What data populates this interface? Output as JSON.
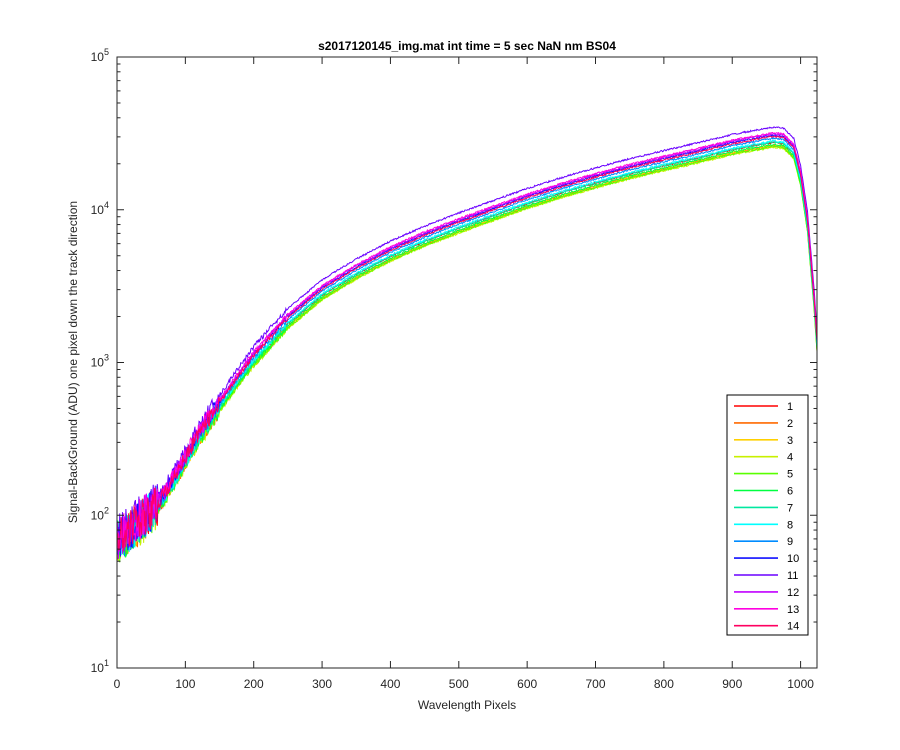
{
  "chart_data": {
    "type": "line",
    "title": "s2017120145_img.mat int time = 5 sec  NaN nm BS04",
    "xlabel": "Wavelength Pixels",
    "ylabel": "Signal-BackGround (ADU) one pixel down the track direction",
    "xlim": [
      0,
      1024
    ],
    "ylim": [
      10,
      100000
    ],
    "yscale": "log",
    "grid": false,
    "legend_position": "lower-right",
    "x_ticks": [
      {
        "v": 0,
        "label": "0"
      },
      {
        "v": 100,
        "label": "100"
      },
      {
        "v": 200,
        "label": "200"
      },
      {
        "v": 300,
        "label": "300"
      },
      {
        "v": 400,
        "label": "400"
      },
      {
        "v": 500,
        "label": "500"
      },
      {
        "v": 600,
        "label": "600"
      },
      {
        "v": 700,
        "label": "700"
      },
      {
        "v": 800,
        "label": "800"
      },
      {
        "v": 900,
        "label": "900"
      },
      {
        "v": 1000,
        "label": "1000"
      }
    ],
    "y_ticks": [
      {
        "v": 10,
        "base": "10",
        "exp": "1"
      },
      {
        "v": 100,
        "base": "10",
        "exp": "2"
      },
      {
        "v": 1000,
        "base": "10",
        "exp": "3"
      },
      {
        "v": 10000,
        "base": "10",
        "exp": "4"
      },
      {
        "v": 100000,
        "base": "10",
        "exp": "5"
      }
    ],
    "x": [
      0,
      10,
      20,
      30,
      40,
      50,
      60,
      70,
      80,
      100,
      120,
      150,
      180,
      200,
      250,
      300,
      350,
      400,
      450,
      500,
      550,
      600,
      650,
      700,
      750,
      800,
      850,
      900,
      940,
      960,
      975,
      990,
      1000,
      1010,
      1020,
      1024
    ],
    "base_curve": [
      68,
      72,
      80,
      88,
      95,
      105,
      118,
      135,
      160,
      230,
      330,
      520,
      800,
      1050,
      1850,
      2850,
      3900,
      5100,
      6400,
      7800,
      9400,
      11300,
      13300,
      15400,
      17700,
      20000,
      22500,
      25500,
      27500,
      28500,
      28000,
      24000,
      16000,
      8000,
      2400,
      1300
    ],
    "series": [
      {
        "name": "1",
        "color": "#ff0000",
        "scale": 0.97
      },
      {
        "name": "2",
        "color": "#ff6a00",
        "scale": 0.92
      },
      {
        "name": "3",
        "color": "#ffd000",
        "scale": 0.93
      },
      {
        "name": "4",
        "color": "#c8f000",
        "scale": 0.9
      },
      {
        "name": "5",
        "color": "#5aff00",
        "scale": 0.91
      },
      {
        "name": "6",
        "color": "#00ff40",
        "scale": 0.94
      },
      {
        "name": "7",
        "color": "#00e8a0",
        "scale": 0.97
      },
      {
        "name": "8",
        "color": "#00ffff",
        "scale": 0.99
      },
      {
        "name": "9",
        "color": "#008cff",
        "scale": 1.03
      },
      {
        "name": "10",
        "color": "#1010ff",
        "scale": 1.08
      },
      {
        "name": "11",
        "color": "#6a00ff",
        "scale": 1.22
      },
      {
        "name": "12",
        "color": "#c000ff",
        "scale": 1.1
      },
      {
        "name": "13",
        "color": "#ff00e0",
        "scale": 1.12
      },
      {
        "name": "14",
        "color": "#ff0060",
        "scale": 1.06
      }
    ]
  }
}
